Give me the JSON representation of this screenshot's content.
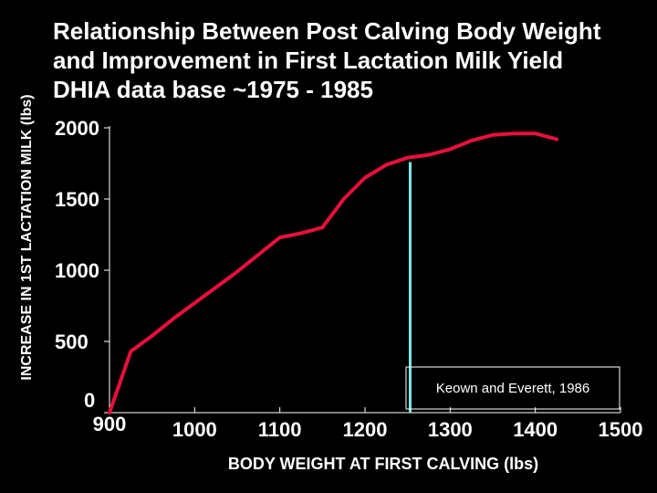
{
  "slide": {
    "title_lines": [
      "Relationship Between Post Calving Body Weight",
      "and Improvement in First Lactation Milk Yield",
      "DHIA data base ~1975 - 1985"
    ]
  },
  "colors": {
    "background": "#000000",
    "text": "#ffffff",
    "axis": "#ffffff",
    "line": "#e8103c",
    "reference_line": "#7fe6e6",
    "annotation_box": "#ffffff"
  },
  "chart_data": {
    "type": "line",
    "xlabel": "BODY WEIGHT AT FIRST CALVING (lbs)",
    "ylabel": "INCREASE IN 1ST LACTATION MILK (lbs)",
    "xlim": [
      900,
      1500
    ],
    "ylim": [
      0,
      2000
    ],
    "x_ticks": [
      "900",
      "1000",
      "1100",
      "1200",
      "1300",
      "1400",
      "1500"
    ],
    "y_ticks": [
      "0",
      "500",
      "1000",
      "1500",
      "2000"
    ],
    "grid": false,
    "series": [
      {
        "x": [
          900,
          925,
          950,
          975,
          1000,
          1025,
          1050,
          1075,
          1100,
          1125,
          1150,
          1175,
          1200,
          1225,
          1250,
          1275,
          1300,
          1325,
          1350,
          1375,
          1400,
          1425
        ],
        "y": [
          0,
          430,
          540,
          660,
          770,
          880,
          990,
          1110,
          1230,
          1260,
          1300,
          1500,
          1650,
          1740,
          1790,
          1810,
          1850,
          1910,
          1950,
          1960,
          1960,
          1920
        ]
      }
    ],
    "reference_line": {
      "x": 1253
    },
    "annotation": {
      "text": "Keown and Everett, 1986"
    }
  }
}
